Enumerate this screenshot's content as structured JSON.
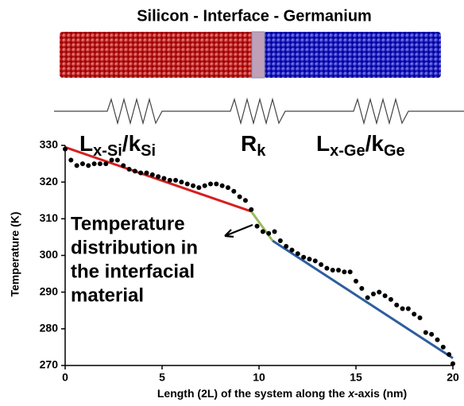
{
  "header": {
    "title": "Silicon - Interface - Germanium"
  },
  "schematic": {
    "labels": [
      [
        "L",
        "x-Si",
        "/k",
        "Si"
      ],
      [
        "R",
        "k"
      ],
      [
        "L",
        "x-Ge",
        "/k",
        "Ge"
      ]
    ]
  },
  "chart_data": {
    "type": "scatter",
    "xlabel": [
      "Length (2L) of the system along the ",
      "x",
      "-axis (nm)"
    ],
    "ylabel": "Temperature (K)",
    "annotation": [
      "Temperature",
      "distribution in",
      "the interfacial",
      "material"
    ],
    "xlim": [
      0,
      20
    ],
    "ylim": [
      270,
      330
    ],
    "xticks": [
      0,
      5,
      10,
      15,
      20
    ],
    "yticks": [
      270,
      280,
      290,
      300,
      310,
      320,
      330
    ],
    "series": [
      {
        "color": "#000000",
        "x": [
          0,
          0.3,
          0.6,
          0.9,
          1.2,
          1.5,
          1.8,
          2.1,
          2.4,
          2.7,
          3.0,
          3.3,
          3.6,
          3.9,
          4.2,
          4.5,
          4.8,
          5.1,
          5.4,
          5.7,
          6.0,
          6.3,
          6.6,
          6.9,
          7.2,
          7.5,
          7.8,
          8.1,
          8.4,
          8.7,
          9.0,
          9.3,
          9.6,
          9.9,
          10.2,
          10.5,
          10.8,
          11.1,
          11.4,
          11.7,
          12.0,
          12.3,
          12.6,
          12.9,
          13.2,
          13.5,
          13.8,
          14.1,
          14.4,
          14.7,
          15.0,
          15.3,
          15.6,
          15.9,
          16.2,
          16.5,
          16.8,
          17.1,
          17.4,
          17.7,
          18.0,
          18.3,
          18.6,
          18.9,
          19.2,
          19.5,
          19.8,
          20
        ],
        "values": [
          329,
          326,
          324.5,
          325,
          324.5,
          325,
          325,
          325,
          326,
          326,
          324.5,
          323.5,
          323,
          322.5,
          322.5,
          322,
          321.5,
          321,
          320.5,
          320.5,
          320,
          319.5,
          319,
          318.5,
          319,
          319.5,
          319.5,
          319,
          318.5,
          317.5,
          316,
          315,
          312.5,
          308,
          306.5,
          306,
          306.5,
          304,
          302.5,
          301.5,
          300.5,
          299.5,
          299,
          298.5,
          297.5,
          296.5,
          296,
          296,
          295.5,
          295.5,
          293,
          291,
          288.5,
          289.5,
          290,
          289,
          288,
          286.5,
          285.5,
          285.5,
          284,
          283,
          279,
          278.5,
          277,
          275,
          273,
          270.5
        ]
      }
    ],
    "lines": [
      {
        "color": "#d42020",
        "x": [
          0,
          9.6
        ],
        "values": [
          329.5,
          312
        ]
      },
      {
        "color": "#9bbb59",
        "x": [
          9.6,
          10.7
        ],
        "values": [
          312,
          304
        ]
      },
      {
        "color": "#2e5e9e",
        "x": [
          10.7,
          20
        ],
        "values": [
          304,
          272
        ]
      }
    ]
  }
}
